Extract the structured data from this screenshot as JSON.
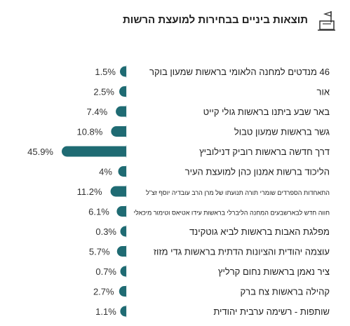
{
  "header": {
    "title": "תוצאות ביניים בבחירות למועצת הרשות",
    "icon": "ballot-box-flag-icon"
  },
  "colors": {
    "bar": "#1f6b73",
    "accent_line": "#c9d8da"
  },
  "chart_data": {
    "type": "bar",
    "orientation": "horizontal",
    "title": "תוצאות ביניים בבחירות למועצת הרשות",
    "value_suffix": "%",
    "categories": [
      "46 מנדטים למחנה הלאומי בראשות שמעון בוקר",
      "אור",
      "באר שבע ביתנו בראשות גולי קייט",
      "גשר בראשות שמעון טבול",
      "דרך חדשה בראשות רוביק דנילוביץ",
      "הליכוד ברשות אמנון כהן למועצת העיר",
      "התאחדות הספרדים שומרי תורה תנועתו של מרן הרב עובדיה יוסף זצ\"ל",
      "חווה חדש לבארשבעים המחנה הליברלי בראשות עידו אטיאס וטימור מיכאלי",
      "מפלגת האבות בראשות לביא גוטקינד",
      "עוצמה יהודית והציונות הדתית בראשות גדי מזוז",
      "ציר נאמן בראשות נחום קרליץ",
      "קהילה בראשות צח ברק",
      "שותפות - רשימה ערבית יהודית"
    ],
    "values": [
      1.5,
      2.5,
      7.4,
      10.8,
      45.9,
      4,
      11.2,
      6.1,
      0.3,
      5.7,
      0.7,
      2.7,
      1.1
    ],
    "value_labels": [
      "1.5%",
      "2.5%",
      "7.4%",
      "10.8%",
      "45.9%",
      "4%",
      "11.2%",
      "6.1%",
      "0.3%",
      "5.7%",
      "0.7%",
      "2.7%",
      "1.1%"
    ],
    "xlim": [
      0,
      45.9
    ],
    "grid": false,
    "legend": "none"
  }
}
